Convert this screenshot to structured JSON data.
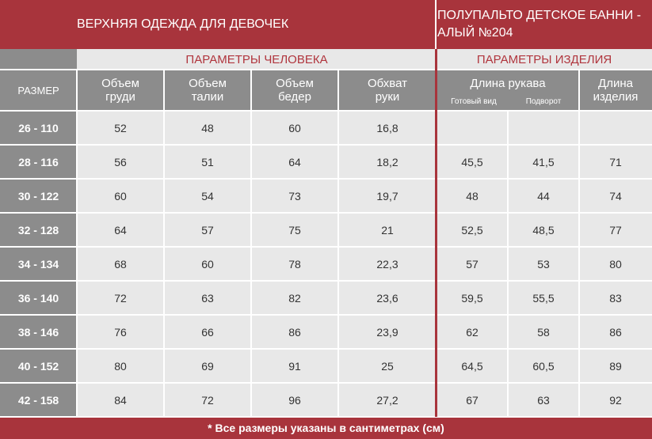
{
  "header": {
    "left_title": "ВЕРХНЯЯ ОДЕЖДА ДЛЯ ДЕВОЧЕК",
    "right_title": "ПОЛУПАЛЬТО ДЕТСКОЕ БАННИ - АЛЫЙ №204"
  },
  "groups": {
    "person": "ПАРАМЕТРЫ ЧЕЛОВЕКА",
    "product": "ПАРАМЕТРЫ ИЗДЕЛИЯ"
  },
  "columns": {
    "size": "РАЗМЕР",
    "chest": "Объем груди",
    "waist": "Объем талии",
    "hips": "Объем бедер",
    "arm": "Обхват руки",
    "sleeve": "Длина рукава",
    "sleeve_ready": "Готовый вид",
    "sleeve_cuff": "Подворот",
    "length": "Длина изделия"
  },
  "rows": [
    [
      "26 - 110",
      "52",
      "48",
      "60",
      "16,8",
      "",
      "",
      ""
    ],
    [
      "28 - 116",
      "56",
      "51",
      "64",
      "18,2",
      "45,5",
      "41,5",
      "71"
    ],
    [
      "30 - 122",
      "60",
      "54",
      "73",
      "19,7",
      "48",
      "44",
      "74"
    ],
    [
      "32 - 128",
      "64",
      "57",
      "75",
      "21",
      "52,5",
      "48,5",
      "77"
    ],
    [
      "34 - 134",
      "68",
      "60",
      "78",
      "22,3",
      "57",
      "53",
      "80"
    ],
    [
      "36 - 140",
      "72",
      "63",
      "82",
      "23,6",
      "59,5",
      "55,5",
      "83"
    ],
    [
      "38 - 146",
      "76",
      "66",
      "86",
      "23,9",
      "62",
      "58",
      "86"
    ],
    [
      "40 - 152",
      "80",
      "69",
      "91",
      "25",
      "64,5",
      "60,5",
      "89"
    ],
    [
      "42 - 158",
      "84",
      "72",
      "96",
      "27,2",
      "67",
      "63",
      "92"
    ]
  ],
  "footer": {
    "note": "* Все размеры указаны в сантиметрах (см)"
  },
  "colors": {
    "red": "#a8343c",
    "gray_dark": "#8c8c8c",
    "gray_light": "#e8e8e8",
    "red_text": "#b0353d",
    "body_text": "#333333"
  }
}
